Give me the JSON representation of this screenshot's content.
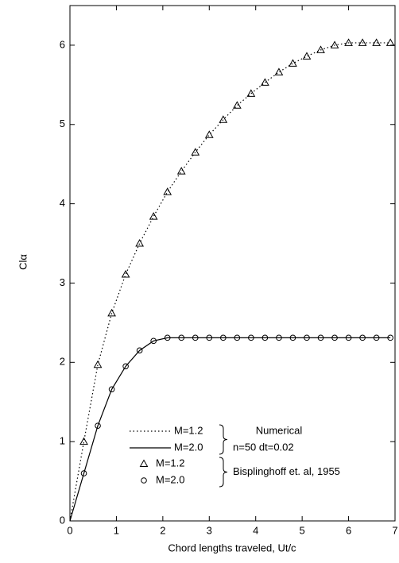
{
  "chart_data": {
    "type": "line",
    "x_label": "Chord lengths traveled, Ut/c",
    "y_label": "Clα",
    "x": [
      0,
      0.3,
      0.6,
      0.9,
      1.2,
      1.5,
      1.8,
      2.1,
      2.4,
      2.7,
      3.0,
      3.3,
      3.6,
      3.9,
      4.2,
      4.5,
      4.8,
      5.1,
      5.4,
      5.7,
      6.0,
      6.3,
      6.6,
      6.9
    ],
    "xlim": [
      0,
      7
    ],
    "xticks": [
      0,
      1,
      2,
      3,
      4,
      5,
      6,
      7
    ],
    "ylim": [
      0,
      6.5
    ],
    "yticks": [
      0,
      1,
      2,
      3,
      4,
      5,
      6
    ],
    "legend_groups": [
      {
        "lines": [
          "Numerical",
          "n=50 dt=0.02"
        ]
      },
      {
        "lines": [
          "Bisplinghoff et. al, 1955"
        ]
      }
    ],
    "series": [
      {
        "name": "M=1.2",
        "style": "dotted",
        "group": 0,
        "color": "#000000",
        "values": [
          0,
          1.0,
          1.97,
          2.62,
          3.11,
          3.5,
          3.84,
          4.15,
          4.41,
          4.65,
          4.87,
          5.06,
          5.24,
          5.39,
          5.53,
          5.66,
          5.77,
          5.86,
          5.94,
          6.0,
          6.03,
          6.03,
          6.03,
          6.03
        ]
      },
      {
        "name": "M=2.0",
        "style": "solid",
        "group": 0,
        "color": "#000000",
        "values": [
          0,
          0.6,
          1.2,
          1.66,
          1.95,
          2.15,
          2.27,
          2.31,
          2.31,
          2.31,
          2.31,
          2.31,
          2.31,
          2.31,
          2.31,
          2.31,
          2.31,
          2.31,
          2.31,
          2.31,
          2.31,
          2.31,
          2.31,
          2.31
        ]
      },
      {
        "name": "M=1.2",
        "style": "triangle",
        "group": 1,
        "color": "#000000",
        "values": [
          null,
          1.0,
          1.97,
          2.62,
          3.11,
          3.5,
          3.84,
          4.15,
          4.41,
          4.65,
          4.87,
          5.06,
          5.24,
          5.39,
          5.53,
          5.66,
          5.77,
          5.86,
          5.94,
          6.0,
          6.03,
          6.03,
          6.03,
          6.03
        ]
      },
      {
        "name": "M=2.0",
        "style": "circle",
        "group": 1,
        "color": "#000000",
        "values": [
          null,
          0.6,
          1.2,
          1.66,
          1.95,
          2.15,
          2.27,
          2.31,
          2.31,
          2.31,
          2.31,
          2.31,
          2.31,
          2.31,
          2.31,
          2.31,
          2.31,
          2.31,
          2.31,
          2.31,
          2.31,
          2.31,
          2.31,
          2.31
        ]
      }
    ]
  }
}
